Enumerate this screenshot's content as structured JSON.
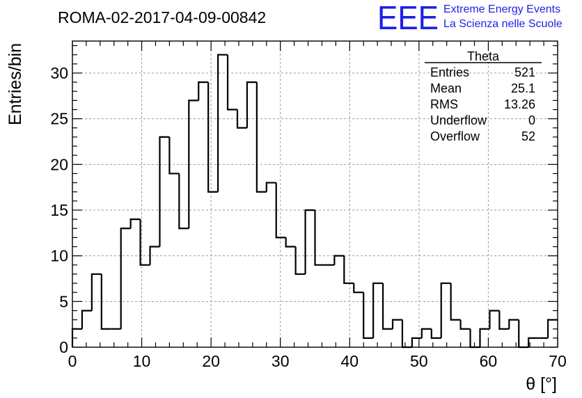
{
  "chart_data": {
    "type": "bar",
    "title": "ROMA-02-2017-04-09-00842",
    "xlabel": "θ [°]",
    "ylabel": "Entries/bin",
    "xlim": [
      0,
      70
    ],
    "ylim": [
      0,
      33.5
    ],
    "grid": true,
    "bin_width": 1.4,
    "x_ticks": [
      0,
      10,
      20,
      30,
      40,
      50,
      60,
      70
    ],
    "y_ticks": [
      0,
      5,
      10,
      15,
      20,
      25,
      30
    ],
    "values": [
      2,
      4,
      8,
      2,
      2,
      13,
      14,
      9,
      11,
      23,
      19,
      13,
      27,
      29,
      17,
      32,
      26,
      24,
      29,
      17,
      18,
      12,
      11,
      8,
      15,
      9,
      9,
      10,
      7,
      6,
      1,
      7,
      2,
      3,
      0,
      1,
      2,
      1,
      7,
      3,
      2,
      0,
      2,
      4,
      2,
      3,
      0,
      1,
      1,
      3
    ],
    "stats_box": {
      "name": "Theta",
      "rows": [
        {
          "label": "Entries",
          "value": "521"
        },
        {
          "label": "Mean",
          "value": "25.1"
        },
        {
          "label": "RMS",
          "value": "13.26"
        },
        {
          "label": "Underflow",
          "value": "0"
        },
        {
          "label": "Overflow",
          "value": "52"
        }
      ]
    }
  },
  "logo": {
    "mark": "EEE",
    "line1": "Extreme Energy Events",
    "line2": "La Scienza nelle Scuole",
    "color": "#1f1fe6"
  }
}
